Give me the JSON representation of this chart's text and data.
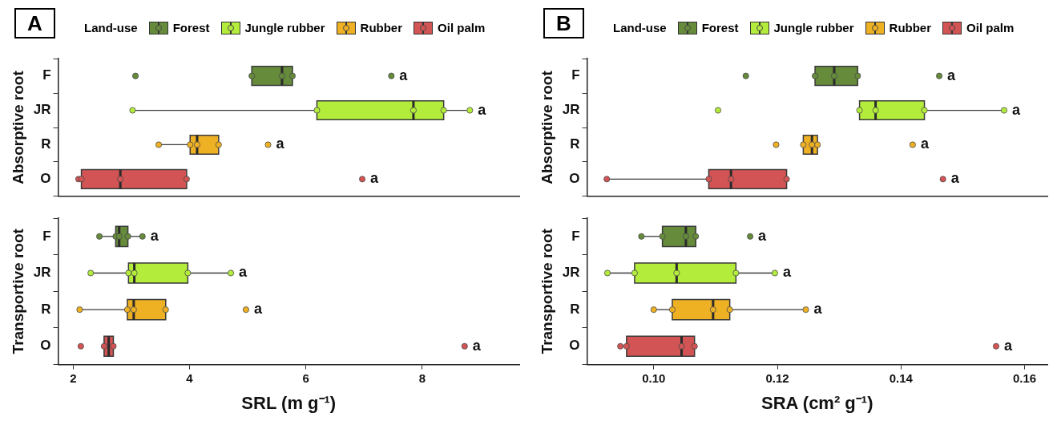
{
  "chart_data": [
    {
      "type": "box",
      "title": "A",
      "legend_title": "Land-use",
      "legend": "top",
      "orientation": "horizontal",
      "marker": "circle",
      "categories": [
        "F",
        "JR",
        "R",
        "O"
      ],
      "ylabel": "Absorptive root",
      "xlim": [
        1.74,
        9.67
      ],
      "tick_labels": "y",
      "annotations": [
        "a",
        "a",
        "a",
        "a"
      ],
      "series": [
        {
          "type": "box",
          "name": "Forest",
          "color": "#658b3b",
          "boxes": [
            {
              "low": 5.07,
              "q1": 5.07,
              "median": 5.59,
              "q3": 5.77,
              "high": 5.77,
              "outliers": [
                3.07,
                7.47
              ]
            },
            null,
            null,
            null
          ]
        },
        {
          "type": "box",
          "name": "Jungle rubber",
          "color": "#b4ec3c",
          "boxes": [
            null,
            {
              "low": 3.02,
              "q1": 6.19,
              "median": 7.85,
              "q3": 8.37,
              "high": 8.82
            },
            null,
            null
          ]
        },
        {
          "type": "box",
          "name": "Rubber",
          "color": "#efb124",
          "boxes": [
            null,
            null,
            {
              "low": 3.47,
              "q1": 4.01,
              "median": 4.13,
              "q3": 4.5,
              "high": 4.5,
              "outliers": [
                5.35
              ]
            },
            null
          ]
        },
        {
          "type": "box",
          "name": "Oil palm",
          "color": "#d35454",
          "boxes": [
            null,
            null,
            null,
            {
              "low": 2.09,
              "q1": 2.14,
              "median": 2.81,
              "q3": 3.95,
              "high": 3.95,
              "outliers": [
                6.97
              ]
            }
          ]
        },
        {
          "type": "scatter",
          "color": "#658b3b",
          "x": [
            "F",
            "F",
            "F"
          ],
          "values": [
            5.07,
            5.59,
            5.77
          ]
        },
        {
          "type": "scatter",
          "color": "#b4ec3c",
          "x": [
            "JR",
            "JR",
            "JR",
            "JR",
            "JR"
          ],
          "values": [
            3.02,
            6.19,
            7.85,
            8.37,
            8.82
          ]
        },
        {
          "type": "scatter",
          "color": "#efb124",
          "x": [
            "R",
            "R",
            "R",
            "R"
          ],
          "values": [
            3.47,
            4.01,
            4.13,
            4.5
          ]
        },
        {
          "type": "scatter",
          "color": "#d35454",
          "x": [
            "O",
            "O",
            "O",
            "O"
          ],
          "values": [
            2.09,
            2.14,
            2.81,
            3.95
          ]
        }
      ]
    },
    {
      "type": "box",
      "orientation": "horizontal",
      "marker": "circle",
      "categories": [
        "F",
        "JR",
        "R",
        "O"
      ],
      "ylabel": "Transportive root",
      "xlabel": "SRL (m g⁻¹)",
      "xlim": [
        1.74,
        9.67
      ],
      "xticks": [
        2,
        4,
        6,
        8
      ],
      "annotations": [
        "a",
        "a",
        "a",
        "a"
      ],
      "series": [
        {
          "type": "box",
          "color": "#658b3b",
          "boxes": [
            {
              "low": 2.45,
              "q1": 2.73,
              "median": 2.79,
              "q3": 2.94,
              "high": 3.19
            },
            null,
            null,
            null
          ]
        },
        {
          "type": "box",
          "color": "#b4ec3c",
          "boxes": [
            null,
            {
              "low": 2.3,
              "q1": 2.95,
              "median": 3.05,
              "q3": 3.97,
              "high": 4.71
            },
            null,
            null
          ]
        },
        {
          "type": "box",
          "color": "#efb124",
          "boxes": [
            null,
            null,
            {
              "low": 2.11,
              "q1": 2.93,
              "median": 3.04,
              "q3": 3.59,
              "high": 3.59,
              "outliers": [
                4.97
              ]
            },
            null
          ]
        },
        {
          "type": "box",
          "color": "#d35454",
          "boxes": [
            null,
            null,
            null,
            {
              "low": 2.53,
              "q1": 2.53,
              "median": 2.61,
              "q3": 2.69,
              "high": 2.69,
              "outliers": [
                2.13,
                8.73
              ]
            }
          ]
        },
        {
          "type": "scatter",
          "color": "#658b3b",
          "x": [
            "F",
            "F",
            "F",
            "F",
            "F"
          ],
          "values": [
            2.45,
            2.73,
            2.79,
            2.94,
            3.19
          ]
        },
        {
          "type": "scatter",
          "color": "#b4ec3c",
          "x": [
            "JR",
            "JR",
            "JR",
            "JR",
            "JR"
          ],
          "values": [
            2.3,
            2.95,
            3.05,
            3.97,
            4.71
          ]
        },
        {
          "type": "scatter",
          "color": "#efb124",
          "x": [
            "R",
            "R",
            "R",
            "R"
          ],
          "values": [
            2.11,
            2.93,
            3.04,
            3.59
          ]
        },
        {
          "type": "scatter",
          "color": "#d35454",
          "x": [
            "O",
            "O"
          ],
          "values": [
            2.53,
            2.69
          ]
        }
      ]
    },
    {
      "type": "box",
      "title": "B",
      "legend_title": "Land-use",
      "legend": "top",
      "orientation": "horizontal",
      "marker": "circle",
      "categories": [
        "F",
        "JR",
        "R",
        "O"
      ],
      "ylabel": "Absorptive root",
      "xlim": [
        0.0892,
        0.1637
      ],
      "tick_labels": "y",
      "annotations": [
        "a",
        "a",
        "a",
        "a"
      ],
      "series": [
        {
          "type": "box",
          "name": "Forest",
          "color": "#658b3b",
          "boxes": [
            {
              "low": 0.1261,
              "q1": 0.1261,
              "median": 0.1292,
              "q3": 0.133,
              "high": 0.133,
              "outliers": [
                0.1149,
                0.1462
              ]
            },
            null,
            null,
            null
          ]
        },
        {
          "type": "box",
          "name": "Jungle rubber",
          "color": "#b4ec3c",
          "boxes": [
            null,
            {
              "low": 0.1333,
              "q1": 0.1333,
              "median": 0.1359,
              "q3": 0.1438,
              "high": 0.1567,
              "outliers": [
                0.1104
              ]
            },
            null,
            null
          ]
        },
        {
          "type": "box",
          "name": "Rubber",
          "color": "#efb124",
          "boxes": [
            null,
            null,
            {
              "low": 0.1242,
              "q1": 0.1242,
              "median": 0.1256,
              "q3": 0.1265,
              "high": 0.1265,
              "outliers": [
                0.1198,
                0.1419
              ]
            },
            null
          ]
        },
        {
          "type": "box",
          "name": "Oil palm",
          "color": "#d35454",
          "boxes": [
            null,
            null,
            null,
            {
              "low": 0.0924,
              "q1": 0.1089,
              "median": 0.1125,
              "q3": 0.1215,
              "high": 0.1215,
              "outliers": [
                0.1468
              ]
            }
          ]
        },
        {
          "type": "scatter",
          "color": "#658b3b",
          "x": [
            "F",
            "F",
            "F"
          ],
          "values": [
            0.1261,
            0.1292,
            0.133
          ]
        },
        {
          "type": "scatter",
          "color": "#b4ec3c",
          "x": [
            "JR",
            "JR",
            "JR",
            "JR"
          ],
          "values": [
            0.1333,
            0.1359,
            0.1438,
            0.1567
          ]
        },
        {
          "type": "scatter",
          "color": "#efb124",
          "x": [
            "R",
            "R",
            "R"
          ],
          "values": [
            0.1242,
            0.1256,
            0.1265
          ]
        },
        {
          "type": "scatter",
          "color": "#d35454",
          "x": [
            "O",
            "O",
            "O",
            "O"
          ],
          "values": [
            0.0924,
            0.1089,
            0.1125,
            0.1215
          ]
        }
      ]
    },
    {
      "type": "box",
      "orientation": "horizontal",
      "marker": "circle",
      "categories": [
        "F",
        "JR",
        "R",
        "O"
      ],
      "ylabel": "Transportive root",
      "xlabel": "SRA (cm² g⁻¹)",
      "xlim": [
        0.0892,
        0.1637
      ],
      "xticks": [
        {
          "value": 0.1,
          "label": "0.10"
        },
        0.12,
        0.14,
        0.16
      ],
      "annotations": [
        "a",
        "a",
        "a",
        "a"
      ],
      "series": [
        {
          "type": "box",
          "color": "#658b3b",
          "boxes": [
            {
              "low": 0.098,
              "q1": 0.1014,
              "median": 0.1052,
              "q3": 0.1068,
              "high": 0.1068,
              "outliers": [
                0.1156
              ]
            },
            null,
            null,
            null
          ]
        },
        {
          "type": "box",
          "color": "#b4ec3c",
          "boxes": [
            null,
            {
              "low": 0.0925,
              "q1": 0.0969,
              "median": 0.1037,
              "q3": 0.1133,
              "high": 0.1196
            },
            null,
            null
          ]
        },
        {
          "type": "box",
          "color": "#efb124",
          "boxes": [
            null,
            null,
            {
              "low": 0.1,
              "q1": 0.103,
              "median": 0.1096,
              "q3": 0.1123,
              "high": 0.1246
            },
            null
          ]
        },
        {
          "type": "box",
          "color": "#d35454",
          "boxes": [
            null,
            null,
            null,
            {
              "low": 0.0956,
              "q1": 0.0956,
              "median": 0.1045,
              "q3": 0.1066,
              "high": 0.1066,
              "outliers": [
                0.0946,
                0.1554
              ]
            }
          ]
        },
        {
          "type": "scatter",
          "color": "#658b3b",
          "x": [
            "F",
            "F",
            "F",
            "F"
          ],
          "values": [
            0.098,
            0.1014,
            0.1052,
            0.1068
          ]
        },
        {
          "type": "scatter",
          "color": "#b4ec3c",
          "x": [
            "JR",
            "JR",
            "JR",
            "JR",
            "JR"
          ],
          "values": [
            0.0925,
            0.0969,
            0.1037,
            0.1133,
            0.1196
          ]
        },
        {
          "type": "scatter",
          "color": "#efb124",
          "x": [
            "R",
            "R",
            "R",
            "R",
            "R"
          ],
          "values": [
            0.1,
            0.103,
            0.1096,
            0.1123,
            0.1246
          ]
        },
        {
          "type": "scatter",
          "color": "#d35454",
          "x": [
            "O",
            "O",
            "O"
          ],
          "values": [
            0.0956,
            0.1045,
            0.1066
          ]
        }
      ]
    }
  ]
}
